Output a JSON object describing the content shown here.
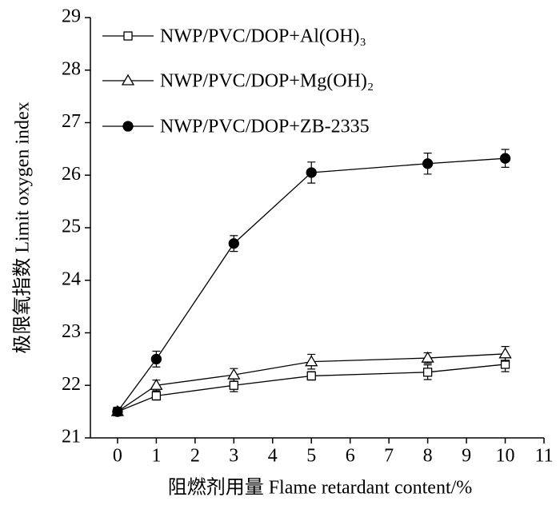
{
  "chart_data": {
    "type": "line",
    "x_label": "阻燃剂用量 Flame retardant content/%",
    "y_label": "极限氧指数 Limit oxygen index",
    "xlim": [
      -0.7,
      11
    ],
    "xticks": [
      0,
      1,
      2,
      3,
      4,
      5,
      6,
      7,
      8,
      9,
      10,
      11
    ],
    "ylim": [
      21,
      29
    ],
    "yticks": [
      21,
      22,
      23,
      24,
      25,
      26,
      27,
      28,
      29
    ],
    "grid": false,
    "legend": "upper left",
    "x": [
      0,
      1,
      3,
      5,
      8,
      10
    ],
    "series": [
      {
        "name": "NWP/PVC/DOP+Al(OH)₃",
        "color": "#000000",
        "marker": "square",
        "filled": false,
        "values": [
          21.5,
          21.8,
          22.0,
          22.18,
          22.25,
          22.4
        ],
        "errors": [
          0.08,
          0.08,
          0.12,
          0.08,
          0.14,
          0.14
        ]
      },
      {
        "name": "NWP/PVC/DOP+Mg(OH)₂",
        "color": "#000000",
        "marker": "triangle",
        "filled": false,
        "values": [
          21.5,
          22.0,
          22.2,
          22.45,
          22.52,
          22.6
        ],
        "errors": [
          0.08,
          0.1,
          0.12,
          0.14,
          0.1,
          0.14
        ]
      },
      {
        "name": "NWP/PVC/DOP+ZB-2335",
        "color": "#000000",
        "marker": "circle",
        "filled": true,
        "values": [
          21.5,
          22.5,
          24.7,
          26.05,
          26.22,
          26.32
        ],
        "errors": [
          0.08,
          0.15,
          0.15,
          0.2,
          0.2,
          0.17
        ]
      }
    ]
  }
}
